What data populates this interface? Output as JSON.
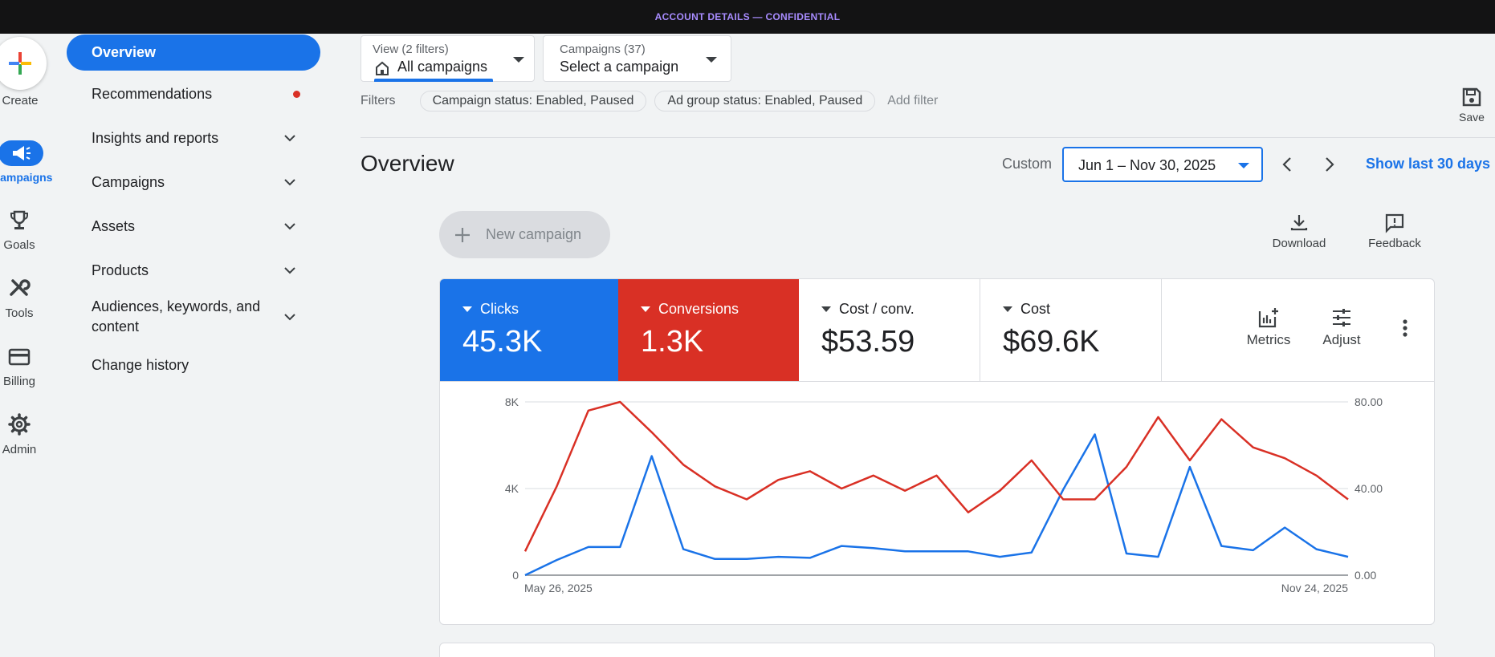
{
  "banner": {
    "text": "ACCOUNT DETAILS — CONFIDENTIAL"
  },
  "rail": {
    "create": "Create",
    "campaigns": "Campaigns",
    "goals": "Goals",
    "tools": "Tools",
    "billing": "Billing",
    "admin": "Admin"
  },
  "nav": {
    "items": [
      {
        "label": "Overview"
      },
      {
        "label": "Recommendations"
      },
      {
        "label": "Insights and reports"
      },
      {
        "label": "Campaigns"
      },
      {
        "label": "Assets"
      },
      {
        "label": "Products"
      },
      {
        "label": "Audiences, keywords, and content"
      },
      {
        "label": "Change history"
      }
    ]
  },
  "view_selector": {
    "caption": "View (2 filters)",
    "value": "All campaigns"
  },
  "campaign_selector": {
    "caption": "Campaigns (37)",
    "value": "Select a campaign"
  },
  "filters": {
    "label": "Filters",
    "chips": [
      "Campaign status: Enabled, Paused",
      "Ad group status: Enabled, Paused"
    ],
    "add": "Add filter"
  },
  "save_label": "Save",
  "page": {
    "title": "Overview"
  },
  "date": {
    "custom_label": "Custom",
    "range": "Jun 1 – Nov 30, 2025",
    "show_last": "Show last 30 days"
  },
  "actions": {
    "new_campaign": "New campaign",
    "download": "Download",
    "feedback": "Feedback"
  },
  "metrics": [
    {
      "label": "Clicks",
      "value": "45.3K",
      "color": "#1a73e8"
    },
    {
      "label": "Conversions",
      "value": "1.3K",
      "color": "#d93025"
    },
    {
      "label": "Cost / conv.",
      "value": "$53.59"
    },
    {
      "label": "Cost",
      "value": "$69.6K"
    }
  ],
  "card_tools": {
    "metrics": "Metrics",
    "adjust": "Adjust"
  },
  "chart_data": {
    "type": "line",
    "x_start_label": "May 26, 2025",
    "x_end_label": "Nov 24, 2025",
    "left_axis": {
      "ticks": [
        "0",
        "4K",
        "8K"
      ],
      "ylim": [
        0,
        8000
      ]
    },
    "right_axis": {
      "ticks": [
        "0.00",
        "40.00",
        "80.00"
      ],
      "ylim": [
        0,
        80
      ]
    },
    "grid": true,
    "series": [
      {
        "axis": "left",
        "color": "#1a73e8",
        "values": [
          0,
          700,
          1300,
          1300,
          5500,
          1200,
          750,
          750,
          850,
          800,
          1350,
          1250,
          1100,
          1100,
          1100,
          850,
          1050,
          3950,
          6500,
          1000,
          850,
          5000,
          1350,
          1150,
          2200,
          1200,
          850
        ]
      },
      {
        "axis": "right",
        "color": "#d93025",
        "values": [
          11,
          41,
          76,
          80,
          66,
          51,
          41,
          35,
          44,
          48,
          40,
          46,
          39,
          46,
          29,
          39,
          53,
          35,
          35,
          50,
          73,
          53,
          72,
          59,
          54,
          46,
          35
        ]
      }
    ]
  }
}
